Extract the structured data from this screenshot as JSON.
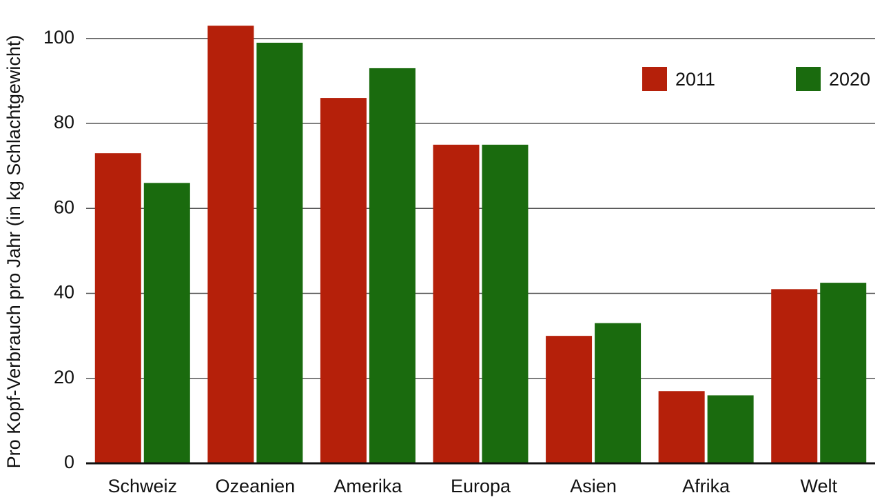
{
  "chart_data": {
    "type": "bar",
    "y_label": "Pro Kopf-Verbrauch pro Jahr (in kg Schlachtgewicht)",
    "categories": [
      "Schweiz",
      "Ozeanien",
      "Amerika",
      "Europa",
      "Asien",
      "Afrika",
      "Welt"
    ],
    "series": [
      {
        "name": "2011",
        "color": "#b5200a",
        "values": [
          73,
          103,
          86,
          75,
          30,
          17,
          41
        ]
      },
      {
        "name": "2020",
        "color": "#1a6b0e",
        "values": [
          66,
          99,
          93,
          75,
          33,
          16,
          42.5
        ]
      }
    ],
    "ylim": [
      0,
      105
    ],
    "yticks": [
      0,
      20,
      40,
      60,
      80,
      100
    ],
    "grid": true,
    "legend": "top-right"
  }
}
